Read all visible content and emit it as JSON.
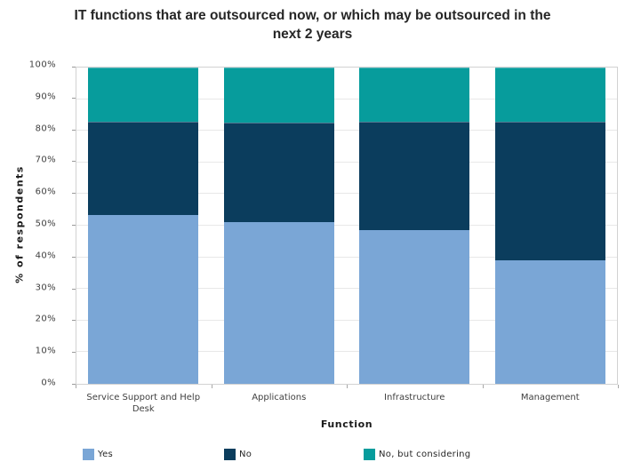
{
  "title": {
    "line1": "IT functions that are outsourced now, or which may be outsourced in the",
    "line2": "next 2 years"
  },
  "chart_data": {
    "type": "bar",
    "stacked": true,
    "title": "IT functions that are outsourced now, or which may be outsourced in the next 2 years",
    "xlabel": "Function",
    "ylabel": "% of respondents",
    "categories": [
      "Service Support and Help Desk",
      "Applications",
      "Infrastructure",
      "Management"
    ],
    "series": [
      {
        "name": "Yes",
        "color": "#7AA6D6",
        "values": [
          53.5,
          51,
          48.5,
          39
        ]
      },
      {
        "name": "No",
        "color": "#0B3D5D",
        "values": [
          29.5,
          31.5,
          34.5,
          44
        ]
      },
      {
        "name": "No, but considering",
        "color": "#079C9C",
        "values": [
          17,
          17.5,
          17,
          17
        ]
      }
    ],
    "ylim": [
      0,
      100
    ],
    "ytick_labels": [
      "0%",
      "10%",
      "20%",
      "30%",
      "40%",
      "50%",
      "60%",
      "70%",
      "80%",
      "90%",
      "100%"
    ],
    "grid": true,
    "legend_position": "bottom"
  },
  "colors": {
    "grid": "#e8e8e8",
    "plot_border": "#d2d2d2",
    "tick": "#9a9a9a",
    "axis_text": "#404040",
    "title_text": "#262626"
  }
}
